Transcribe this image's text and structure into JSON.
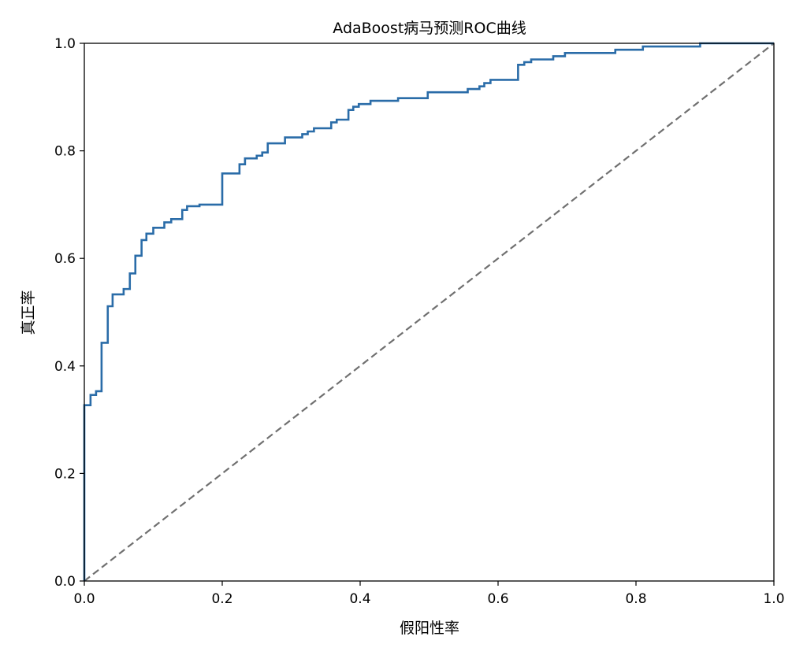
{
  "chart_data": {
    "type": "line",
    "title": "AdaBoost病马预测ROC曲线",
    "xlabel": "假阳性率",
    "ylabel": "真正率",
    "xlim": [
      0.0,
      1.0
    ],
    "ylim": [
      0.0,
      1.0
    ],
    "x_ticks": [
      "0.0",
      "0.2",
      "0.4",
      "0.6",
      "0.8",
      "1.0"
    ],
    "y_ticks": [
      "0.0",
      "0.2",
      "0.4",
      "0.6",
      "0.8",
      "1.0"
    ],
    "grid": false,
    "series": [
      {
        "kind": "roc-curve",
        "color": "#2a6ca8",
        "x": [
          0.0,
          0.0,
          0.0,
          0.0,
          0.0,
          0.0,
          0.009,
          0.009,
          0.017,
          0.017,
          0.025,
          0.025,
          0.034,
          0.034,
          0.041,
          0.041,
          0.057,
          0.057,
          0.066,
          0.066,
          0.074,
          0.074,
          0.083,
          0.083,
          0.09,
          0.09,
          0.1,
          0.1,
          0.116,
          0.116,
          0.126,
          0.126,
          0.142,
          0.142,
          0.149,
          0.149,
          0.167,
          0.167,
          0.2,
          0.2,
          0.225,
          0.225,
          0.233,
          0.233,
          0.25,
          0.25,
          0.258,
          0.258,
          0.266,
          0.266,
          0.291,
          0.291,
          0.316,
          0.316,
          0.324,
          0.324,
          0.333,
          0.333,
          0.358,
          0.358,
          0.366,
          0.366,
          0.383,
          0.383,
          0.39,
          0.39,
          0.398,
          0.398,
          0.415,
          0.415,
          0.455,
          0.455,
          0.498,
          0.498,
          0.556,
          0.556,
          0.573,
          0.573,
          0.58,
          0.58,
          0.589,
          0.589,
          0.629,
          0.629,
          0.638,
          0.638,
          0.648,
          0.648,
          0.68,
          0.68,
          0.697,
          0.697,
          0.77,
          0.77,
          0.81,
          0.81,
          0.893,
          0.893,
          1.0
        ],
        "y": [
          0.0,
          0.2,
          0.25,
          0.3,
          0.327,
          0.327,
          0.327,
          0.346,
          0.346,
          0.353,
          0.353,
          0.443,
          0.443,
          0.511,
          0.511,
          0.533,
          0.533,
          0.543,
          0.543,
          0.572,
          0.572,
          0.605,
          0.605,
          0.634,
          0.634,
          0.646,
          0.646,
          0.657,
          0.657,
          0.667,
          0.667,
          0.673,
          0.673,
          0.69,
          0.69,
          0.697,
          0.697,
          0.7,
          0.7,
          0.758,
          0.758,
          0.775,
          0.775,
          0.786,
          0.786,
          0.791,
          0.791,
          0.797,
          0.797,
          0.814,
          0.814,
          0.825,
          0.825,
          0.831,
          0.831,
          0.836,
          0.836,
          0.842,
          0.842,
          0.853,
          0.853,
          0.858,
          0.858,
          0.876,
          0.876,
          0.882,
          0.882,
          0.887,
          0.887,
          0.893,
          0.893,
          0.898,
          0.898,
          0.909,
          0.909,
          0.915,
          0.915,
          0.92,
          0.92,
          0.926,
          0.926,
          0.932,
          0.932,
          0.96,
          0.96,
          0.965,
          0.965,
          0.97,
          0.97,
          0.976,
          0.976,
          0.982,
          0.982,
          0.988,
          0.988,
          0.994,
          0.994,
          1.0,
          1.0
        ]
      },
      {
        "kind": "diagonal-reference",
        "color": "#707070",
        "dashed": true,
        "x": [
          0.0,
          1.0
        ],
        "y": [
          0.0,
          1.0
        ]
      }
    ]
  }
}
